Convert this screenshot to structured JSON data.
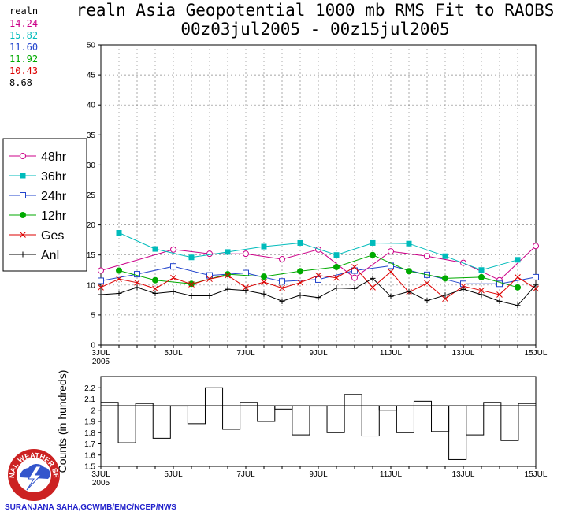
{
  "header": {
    "title_line1": "realn Asia Geopotential 1000 mb RMS Fit to RAOBS",
    "title_line2": "00z03jul2005 - 00z15jul2005"
  },
  "stats": {
    "label": "realn",
    "items": [
      {
        "value": "14.24",
        "color": "#cc0088"
      },
      {
        "value": "15.82",
        "color": "#00bbbb"
      },
      {
        "value": "11.60",
        "color": "#2244cc"
      },
      {
        "value": "11.92",
        "color": "#00aa00"
      },
      {
        "value": "10.43",
        "color": "#dd0000"
      },
      {
        "value": "8.68",
        "color": "#000000"
      }
    ]
  },
  "legend": [
    {
      "label": "48hr",
      "marker": "circle-open",
      "color": "#cc0088"
    },
    {
      "label": "36hr",
      "marker": "square-filled",
      "color": "#00bbbb"
    },
    {
      "label": "24hr",
      "marker": "square-open",
      "color": "#2244cc"
    },
    {
      "label": "12hr",
      "marker": "circle-filled",
      "color": "#00aa00"
    },
    {
      "label": "Ges",
      "marker": "x",
      "color": "#dd0000"
    },
    {
      "label": "Anl",
      "marker": "plus",
      "color": "#000000"
    }
  ],
  "chart_data": [
    {
      "type": "line",
      "title": "realn Asia Geopotential 1000 mb RMS Fit to RAOBS",
      "ylim": [
        0,
        50
      ],
      "yticks": [
        0,
        5,
        10,
        15,
        20,
        25,
        30,
        35,
        40,
        45,
        50
      ],
      "xlim": [
        0,
        24
      ],
      "xticks": [
        {
          "x": 0,
          "label": "3JUL",
          "sub": "2005"
        },
        {
          "x": 4,
          "label": "5JUL"
        },
        {
          "x": 8,
          "label": "7JUL"
        },
        {
          "x": 12,
          "label": "9JUL"
        },
        {
          "x": 16,
          "label": "11JUL"
        },
        {
          "x": 20,
          "label": "13JUL"
        },
        {
          "x": 24,
          "label": "15JUL"
        }
      ],
      "series": [
        {
          "name": "48hr",
          "x": [
            0,
            4,
            6,
            8,
            10,
            12,
            14,
            16,
            18,
            20,
            22,
            24
          ],
          "values": [
            12.4,
            15.9,
            15.2,
            15.2,
            14.3,
            15.9,
            11.2,
            15.6,
            14.8,
            13.7,
            10.8,
            16.5
          ]
        },
        {
          "name": "36hr",
          "x": [
            1,
            3,
            5,
            7,
            9,
            11,
            13,
            15,
            17,
            19,
            21,
            23
          ],
          "values": [
            18.7,
            16.0,
            14.6,
            15.5,
            16.4,
            17.0,
            15.0,
            17.0,
            16.9,
            14.8,
            12.5,
            14.2
          ]
        },
        {
          "name": "24hr",
          "x": [
            0,
            2,
            4,
            6,
            8,
            10,
            12,
            14,
            16,
            18,
            20,
            22,
            24
          ],
          "values": [
            10.7,
            11.8,
            13.1,
            11.6,
            12.0,
            10.6,
            10.9,
            12.4,
            13.2,
            11.7,
            10.2,
            10.2,
            11.3
          ]
        },
        {
          "name": "12hr",
          "x": [
            1,
            3,
            5,
            7,
            9,
            11,
            13,
            15,
            17,
            19,
            21,
            23
          ],
          "values": [
            12.4,
            10.8,
            10.2,
            11.8,
            11.4,
            12.3,
            13.0,
            15.0,
            12.3,
            11.1,
            11.3,
            9.6
          ]
        },
        {
          "name": "Ges",
          "x": [
            0,
            1,
            2,
            3,
            4,
            5,
            6,
            7,
            8,
            9,
            10,
            11,
            12,
            13,
            14,
            15,
            16,
            17,
            18,
            19,
            20,
            21,
            22,
            23,
            24
          ],
          "values": [
            9.6,
            11.0,
            10.4,
            9.4,
            11.2,
            10.1,
            11.0,
            11.6,
            9.6,
            10.5,
            9.5,
            10.4,
            11.6,
            11.2,
            13.0,
            9.6,
            12.2,
            8.8,
            10.3,
            7.7,
            9.8,
            9.1,
            8.4,
            11.3,
            9.4
          ]
        },
        {
          "name": "Anl",
          "x": [
            0,
            1,
            2,
            3,
            4,
            5,
            6,
            7,
            8,
            9,
            10,
            11,
            12,
            13,
            14,
            15,
            16,
            17,
            18,
            19,
            20,
            21,
            22,
            23,
            24
          ],
          "values": [
            8.4,
            8.6,
            9.6,
            8.6,
            8.9,
            8.2,
            8.2,
            9.3,
            9.1,
            8.5,
            7.3,
            8.3,
            7.9,
            9.5,
            9.4,
            11.1,
            8.1,
            8.9,
            7.4,
            8.3,
            9.3,
            8.4,
            7.3,
            6.6,
            10.0
          ]
        }
      ]
    },
    {
      "type": "bar",
      "ylabel": "Counts (in hundreds)",
      "ylim": [
        1.5,
        2.3
      ],
      "yticks": [
        1.5,
        1.6,
        1.7,
        1.8,
        1.9,
        2,
        2.1,
        2.2
      ],
      "reference_line": 2.04,
      "xlim": [
        0,
        24
      ],
      "xticks": [
        {
          "x": 0,
          "label": "3JUL",
          "sub": "2005"
        },
        {
          "x": 4,
          "label": "5JUL"
        },
        {
          "x": 8,
          "label": "7JUL"
        },
        {
          "x": 12,
          "label": "9JUL"
        },
        {
          "x": 16,
          "label": "11JUL"
        },
        {
          "x": 20,
          "label": "13JUL"
        },
        {
          "x": 24,
          "label": "15JUL"
        }
      ],
      "values": [
        2.07,
        1.71,
        2.06,
        1.75,
        2.04,
        1.88,
        2.2,
        1.83,
        2.07,
        1.9,
        2.01,
        1.78,
        2.04,
        1.8,
        2.14,
        1.77,
        2.0,
        1.8,
        2.08,
        1.81,
        1.56,
        1.78,
        2.07,
        1.73,
        2.06
      ]
    }
  ],
  "footer": {
    "credit": "SURANJANA SAHA,GCWMB/EMC/NCEP/NWS",
    "logo_text": "NATIONAL WEATHER SERVICE"
  }
}
